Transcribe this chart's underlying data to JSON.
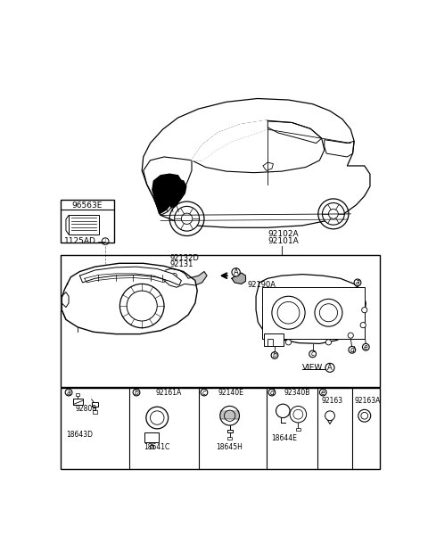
{
  "bg_color": "#ffffff",
  "part_96563E": "96563E",
  "part_1125AD": "1125AD",
  "part_92102A": "92102A",
  "part_92101A": "92101A",
  "part_92132D": "92132D",
  "part_92131": "92131",
  "part_92190A": "92190A",
  "part_92808": "92808",
  "part_18643D": "18643D",
  "part_92161A": "92161A",
  "part_18641C": "18641C",
  "part_92140E": "92140E",
  "part_18645H": "18645H",
  "part_92340B": "92340B",
  "part_18644E": "18644E",
  "part_92163": "92163",
  "part_92163A": "92163A",
  "view_text": "VIEW"
}
